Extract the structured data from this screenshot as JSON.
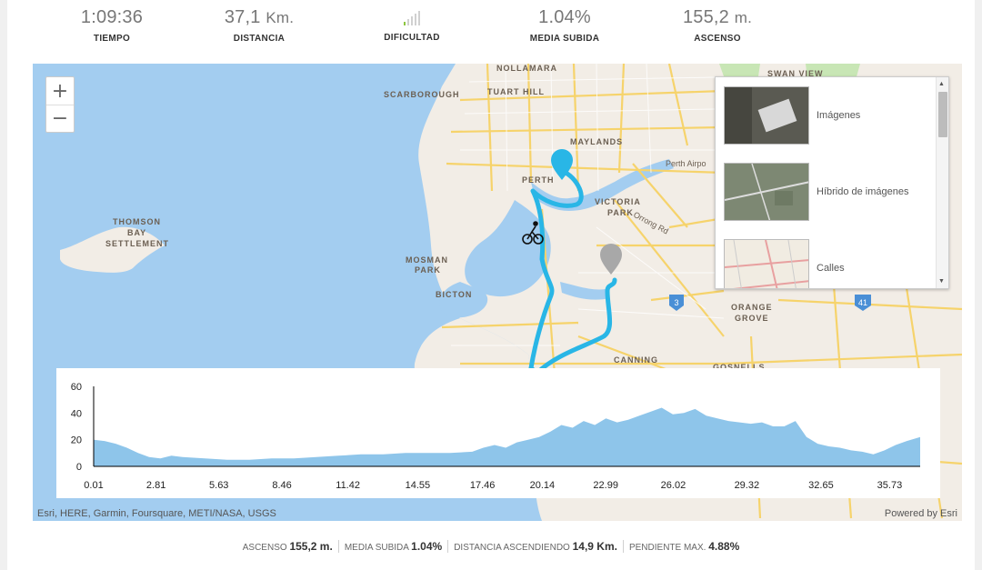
{
  "stats": [
    {
      "value": "1:09:36",
      "unit": "",
      "label": "TIEMPO"
    },
    {
      "value": "37,1",
      "unit": "Km.",
      "label": "DISTANCIA"
    },
    {
      "value": "",
      "unit": "",
      "label": "DIFICULTAD"
    },
    {
      "value": "1.04%",
      "unit": "",
      "label": "MEDIA SUBIDA"
    },
    {
      "value": "155,2",
      "unit": "m.",
      "label": "ASCENSO"
    }
  ],
  "difficulty": {
    "level": 1,
    "of": 5,
    "active_color": "#8cc63f"
  },
  "map": {
    "zoom_in": "+",
    "zoom_out": "−",
    "labels": {
      "nollamara": "NOLLAMARA",
      "scarborough": "SCARBOROUGH",
      "tuart_hill": "TUART HILL",
      "maylands": "MAYLANDS",
      "perth": "PERTH",
      "perth_airport": "Perth Airpo",
      "victoria_park_1": "VICTORIA",
      "victoria_park_2": "PARK",
      "orrong": "Orrong Rd",
      "thomson_1": "THOMSON",
      "thomson_2": "BAY",
      "thomson_3": "SETTLEMENT",
      "mosman_1": "MOSMAN",
      "mosman_2": "PARK",
      "bicton": "BICTON",
      "orange_1": "ORANGE",
      "orange_2": "GROVE",
      "canning": "CANNING",
      "gosnells": "GOSNELLS",
      "swan_view": "SWAN VIEW",
      "shield_3": "3",
      "shield_41": "41"
    },
    "attribution": "Esri, HERE, Garmin, Foursquare, METI/NASA, USGS",
    "powered": "Powered by Esri",
    "route_color": "#29b6e6"
  },
  "basemaps": [
    {
      "label": "Imágenes"
    },
    {
      "label": "Híbrido de imágenes"
    },
    {
      "label": "Calles"
    }
  ],
  "chart_data": {
    "type": "area",
    "ylim": [
      0,
      60
    ],
    "yticks": [
      0,
      20,
      40,
      60
    ],
    "xtick_labels": [
      "0.01",
      "2.81",
      "5.63",
      "8.46",
      "11.42",
      "14.55",
      "17.46",
      "20.14",
      "22.99",
      "26.02",
      "29.32",
      "32.65",
      "35.73"
    ],
    "x": [
      0.01,
      0.5,
      1.0,
      1.5,
      2.0,
      2.5,
      3.0,
      3.5,
      4.0,
      5.0,
      6.0,
      7.0,
      8.0,
      9.0,
      10.0,
      11.0,
      12.0,
      13.0,
      14.0,
      15.0,
      16.0,
      17.0,
      17.5,
      18.0,
      18.5,
      19.0,
      19.5,
      20.0,
      20.5,
      21.0,
      21.5,
      22.0,
      22.5,
      23.0,
      23.5,
      24.0,
      24.5,
      25.0,
      25.5,
      26.0,
      26.5,
      27.0,
      27.5,
      28.0,
      28.5,
      29.0,
      29.5,
      30.0,
      30.5,
      31.0,
      31.5,
      32.0,
      32.5,
      33.0,
      33.5,
      34.0,
      34.5,
      35.0,
      35.5,
      36.0,
      36.5,
      37.1
    ],
    "y": [
      20,
      19,
      17,
      14,
      10,
      7,
      6,
      8,
      7,
      6,
      5,
      5,
      6,
      6,
      7,
      8,
      9,
      9,
      10,
      10,
      10,
      11,
      14,
      16,
      14,
      18,
      20,
      22,
      26,
      31,
      29,
      34,
      31,
      36,
      33,
      35,
      38,
      41,
      44,
      39,
      40,
      43,
      38,
      36,
      34,
      33,
      32,
      33,
      30,
      30,
      34,
      22,
      17,
      15,
      14,
      12,
      11,
      9,
      12,
      16,
      19,
      22
    ],
    "fill": "#8ec5ea"
  },
  "footer": [
    {
      "label": "ASCENSO",
      "value": "155,2 m."
    },
    {
      "label": "MEDIA SUBIDA",
      "value": "1.04%"
    },
    {
      "label": "DISTANCIA ASCENDIENDO",
      "value": "14,9 Km."
    },
    {
      "label": "PENDIENTE MAX.",
      "value": "4.88%"
    }
  ]
}
